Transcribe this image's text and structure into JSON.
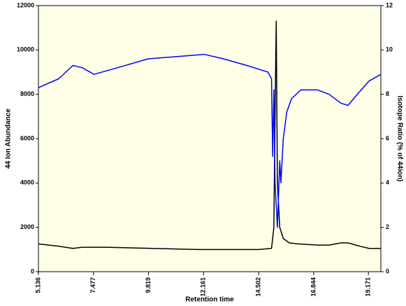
{
  "chart_data": {
    "type": "line",
    "x_label": "Retention time",
    "y_label": "44 Ion Abundance",
    "y2_label": "Isotope Ratio (% of 44ion)",
    "xlim": [
      5.136,
      19.7
    ],
    "xticks": [
      5.136,
      7.477,
      9.819,
      12.161,
      14.502,
      16.844,
      19.171
    ],
    "ylim": [
      0,
      12000
    ],
    "yticks": [
      0,
      2000,
      4000,
      6000,
      8000,
      10000,
      12000
    ],
    "y2lim": [
      0,
      12
    ],
    "y2ticks": [
      0,
      2,
      4,
      6,
      8,
      10,
      12
    ],
    "series": [
      {
        "color": "#000000",
        "x": [
          5.136,
          6.0,
          6.6,
          7.0,
          8.0,
          10.0,
          12.0,
          14.5,
          15.05,
          15.15,
          15.2,
          15.25,
          15.3,
          15.4,
          15.55,
          15.8,
          16.2,
          17.0,
          17.5,
          18.0,
          18.3,
          18.8,
          19.2,
          19.7
        ],
        "values": [
          1250,
          1150,
          1050,
          1100,
          1100,
          1050,
          1000,
          1000,
          1050,
          2000,
          7000,
          11300,
          4000,
          2000,
          1500,
          1300,
          1250,
          1200,
          1200,
          1300,
          1300,
          1150,
          1050,
          1050
        ]
      },
      {
        "color": "#0000ff",
        "axis": "y2",
        "x": [
          5.136,
          6.0,
          6.6,
          7.0,
          7.5,
          8.5,
          9.8,
          11.0,
          12.2,
          13.0,
          14.0,
          14.9,
          15.05,
          15.1,
          15.15,
          15.2,
          15.3,
          15.4,
          15.45,
          15.55,
          15.7,
          15.9,
          16.3,
          17.0,
          17.5,
          18.0,
          18.3,
          18.7,
          19.2,
          19.7
        ],
        "values": [
          8.3,
          8.7,
          9.3,
          9.2,
          8.9,
          9.2,
          9.6,
          9.7,
          9.8,
          9.6,
          9.3,
          9.0,
          8.7,
          5.2,
          8.2,
          4.0,
          2.0,
          5.0,
          4.0,
          6.0,
          7.2,
          7.8,
          8.2,
          8.2,
          8.0,
          7.6,
          7.5,
          8.0,
          8.6,
          8.9
        ]
      }
    ]
  }
}
